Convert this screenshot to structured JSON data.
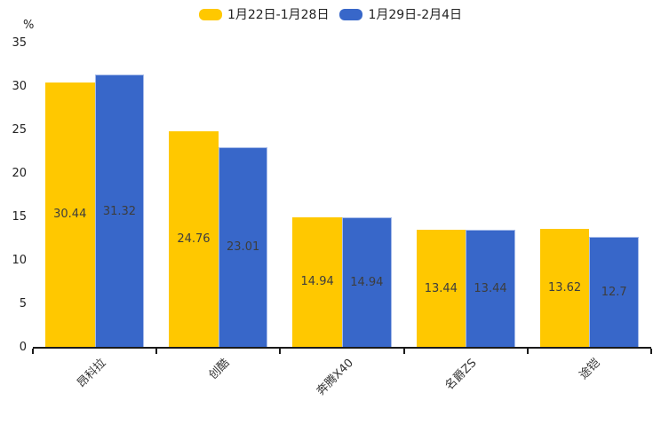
{
  "chart_data": {
    "type": "bar",
    "title": "",
    "xlabel": "",
    "ylabel": "%",
    "ylim": [
      0,
      35
    ],
    "yticks": [
      0,
      5,
      10,
      15,
      20,
      25,
      30,
      35
    ],
    "grid": false,
    "legend_position": "top",
    "value_labels": true,
    "categories": [
      "昂科拉",
      "创酷",
      "奔腾X40",
      "名爵ZS",
      "途铠"
    ],
    "series": [
      {
        "name": "1月22日-1月28日",
        "color": "#FFC800",
        "border_color": "",
        "values": [
          30.44,
          24.76,
          14.94,
          13.44,
          13.62
        ]
      },
      {
        "name": "1月29日-2月4日",
        "color": "#3867C9",
        "border_color": "#A6BBE9",
        "values": [
          31.32,
          23.01,
          14.94,
          13.44,
          12.7
        ]
      }
    ]
  },
  "colors": {
    "axis": "#1a1a1a",
    "tick_text": "#222222",
    "value_text": "#3d3d3d"
  }
}
